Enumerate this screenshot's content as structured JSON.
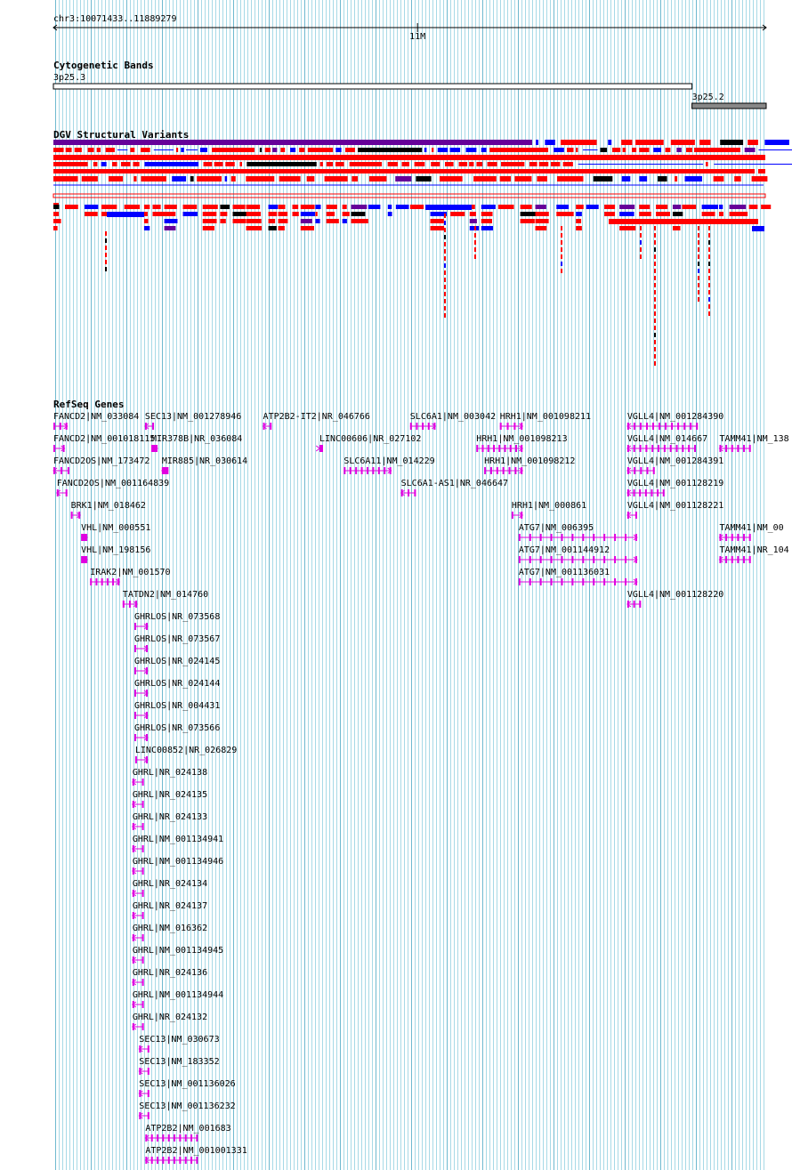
{
  "region": {
    "label": "chr3:10071433..11889279",
    "start": 10071433,
    "end": 11889279,
    "tick_label": "11M",
    "tick_pos": 11000000
  },
  "colors": {
    "grid": "#a7d9e6",
    "grid_major": "#6fb9cf",
    "ruler": "#000000",
    "gene": "#e000e0",
    "gain": "#ff0000",
    "loss": "#0000ff",
    "complex": "#660099",
    "other": "#000000",
    "band_light": "#ffffff",
    "band_dark": "#888888"
  },
  "cytoband": {
    "title": "Cytogenetic Bands",
    "bands": [
      {
        "name": "3p25.3",
        "start": 10071433,
        "end": 11700000,
        "color": "band_light"
      },
      {
        "name": "3p25.2",
        "start": 11700000,
        "end": 11889279,
        "color": "band_dark"
      }
    ]
  },
  "dgv": {
    "title": "DGV Structural Variants"
  },
  "refseq": {
    "title": "RefSeq Genes",
    "genes": [
      {
        "label": "FANCD2|NM_033084",
        "start": 10071433,
        "end": 10107000,
        "strand": "+",
        "row": 0
      },
      {
        "label": "SEC13|NM_001278946",
        "start": 10305000,
        "end": 10328000,
        "strand": "-",
        "row": 0
      },
      {
        "label": "ATP2B2-IT2|NR_046766",
        "start": 10606000,
        "end": 10628000,
        "strand": "-",
        "row": 0
      },
      {
        "label": "SLC6A1|NM_003042",
        "start": 10981000,
        "end": 11046000,
        "strand": "+",
        "row": 0
      },
      {
        "label": "HRH1|NM_001098211",
        "start": 11210000,
        "end": 11268000,
        "strand": "+",
        "row": 0
      },
      {
        "label": "VGLL4|NM_001284390",
        "start": 11535000,
        "end": 11715000,
        "strand": "-",
        "row": 0
      },
      {
        "label": "FANCD2|NM_001018115",
        "start": 10071433,
        "end": 10100000,
        "strand": "+",
        "row": 1
      },
      {
        "label": "MIR378B|NR_036084",
        "start": 10321000,
        "end": 10337000,
        "strand": "+",
        "row": 1
      },
      {
        "label": "LINC00606|NR_027102",
        "start": 10750000,
        "end": 10750500,
        "strand": "+",
        "row": 1
      },
      {
        "label": "HRH1|NM_001098213",
        "start": 11150000,
        "end": 11268000,
        "strand": "+",
        "row": 1
      },
      {
        "label": "VGLL4|NM_014667",
        "start": 11535000,
        "end": 11710000,
        "strand": "-",
        "row": 1
      },
      {
        "label": "TAMM41|NM_138",
        "start": 11770000,
        "end": 11850000,
        "strand": "-",
        "row": 1
      },
      {
        "label": "FANCD2OS|NM_173472",
        "start": 10071433,
        "end": 10112000,
        "strand": "-",
        "row": 2
      },
      {
        "label": "MIR885|NR_030614",
        "start": 10348000,
        "end": 10365000,
        "strand": "-",
        "row": 2
      },
      {
        "label": "SLC6A11|NM_014229",
        "start": 10812000,
        "end": 10933000,
        "strand": "+",
        "row": 2
      },
      {
        "label": "HRH1|NM_001098212",
        "start": 11170000,
        "end": 11268000,
        "strand": "+",
        "row": 2
      },
      {
        "label": "VGLL4|NM_001284391",
        "start": 11535000,
        "end": 11605000,
        "strand": "-",
        "row": 2
      },
      {
        "label": "FANCD2OS|NM_001164839",
        "start": 10080000,
        "end": 10107000,
        "strand": "-",
        "row": 3
      },
      {
        "label": "SLC6A1-AS1|NR_046647",
        "start": 10958000,
        "end": 10996000,
        "strand": "-",
        "row": 3
      },
      {
        "label": "VGLL4|NM_001128219",
        "start": 11535000,
        "end": 11630000,
        "strand": "-",
        "row": 3
      },
      {
        "label": "BRK1|NM_018462",
        "start": 10116000,
        "end": 10140000,
        "strand": "+",
        "row": 4
      },
      {
        "label": "HRH1|NM_000861",
        "start": 11240000,
        "end": 11268000,
        "strand": "+",
        "row": 4
      },
      {
        "label": "VGLL4|NM_001128221",
        "start": 11535000,
        "end": 11560000,
        "strand": "-",
        "row": 4
      },
      {
        "label": "VHL|NM_000551",
        "start": 10142000,
        "end": 10158000,
        "strand": "+",
        "row": 5
      },
      {
        "label": "ATG7|NM_006395",
        "start": 11258000,
        "end": 11560000,
        "strand": "+",
        "row": 5
      },
      {
        "label": "TAMM41|NM_00",
        "start": 11770000,
        "end": 11850000,
        "strand": "-",
        "row": 5
      },
      {
        "label": "VHL|NM_198156",
        "start": 10142000,
        "end": 10158000,
        "strand": "+",
        "row": 6
      },
      {
        "label": "ATG7|NM_001144912",
        "start": 11258000,
        "end": 11560000,
        "strand": "+",
        "row": 6
      },
      {
        "label": "TAMM41|NR_104",
        "start": 11770000,
        "end": 11850000,
        "strand": "-",
        "row": 6
      },
      {
        "label": "IRAK2|NM_001570",
        "start": 10165000,
        "end": 10240000,
        "strand": "+",
        "row": 7
      },
      {
        "label": "ATG7|NM_001136031",
        "start": 11258000,
        "end": 11560000,
        "strand": "+",
        "row": 7
      },
      {
        "label": "TATDN2|NM_014760",
        "start": 10248000,
        "end": 10285000,
        "strand": "+",
        "row": 8
      },
      {
        "label": "VGLL4|NM_001128220",
        "start": 11535000,
        "end": 11570000,
        "strand": "-",
        "row": 8
      },
      {
        "label": "GHRLOS|NR_073568",
        "start": 10278000,
        "end": 10312000,
        "strand": "+",
        "row": 9
      },
      {
        "label": "GHRLOS|NR_073567",
        "start": 10278000,
        "end": 10312000,
        "strand": "+",
        "row": 10
      },
      {
        "label": "GHRLOS|NR_024145",
        "start": 10278000,
        "end": 10312000,
        "strand": "+",
        "row": 11
      },
      {
        "label": "GHRLOS|NR_024144",
        "start": 10278000,
        "end": 10312000,
        "strand": "+",
        "row": 12
      },
      {
        "label": "GHRLOS|NR_004431",
        "start": 10278000,
        "end": 10312000,
        "strand": "+",
        "row": 13
      },
      {
        "label": "GHRLOS|NR_073566",
        "start": 10278000,
        "end": 10312000,
        "strand": "+",
        "row": 14
      },
      {
        "label": "LINC00852|NR_026829",
        "start": 10280000,
        "end": 10312000,
        "strand": "+",
        "row": 15
      },
      {
        "label": "GHRL|NR_024138",
        "start": 10273000,
        "end": 10302000,
        "strand": "-",
        "row": 16
      },
      {
        "label": "GHRL|NR_024135",
        "start": 10273000,
        "end": 10302000,
        "strand": "-",
        "row": 17
      },
      {
        "label": "GHRL|NR_024133",
        "start": 10273000,
        "end": 10302000,
        "strand": "-",
        "row": 18
      },
      {
        "label": "GHRL|NM_001134941",
        "start": 10273000,
        "end": 10302000,
        "strand": "-",
        "row": 19
      },
      {
        "label": "GHRL|NM_001134946",
        "start": 10273000,
        "end": 10302000,
        "strand": "-",
        "row": 20
      },
      {
        "label": "GHRL|NR_024134",
        "start": 10273000,
        "end": 10302000,
        "strand": "-",
        "row": 21
      },
      {
        "label": "GHRL|NR_024137",
        "start": 10273000,
        "end": 10302000,
        "strand": "-",
        "row": 22
      },
      {
        "label": "GHRL|NM_016362",
        "start": 10273000,
        "end": 10302000,
        "strand": "-",
        "row": 23
      },
      {
        "label": "GHRL|NM_001134945",
        "start": 10273000,
        "end": 10302000,
        "strand": "-",
        "row": 24
      },
      {
        "label": "GHRL|NR_024136",
        "start": 10273000,
        "end": 10302000,
        "strand": "-",
        "row": 25
      },
      {
        "label": "GHRL|NM_001134944",
        "start": 10273000,
        "end": 10302000,
        "strand": "-",
        "row": 26
      },
      {
        "label": "GHRL|NR_024132",
        "start": 10273000,
        "end": 10302000,
        "strand": "-",
        "row": 27
      },
      {
        "label": "SEC13|NM_030673",
        "start": 10290000,
        "end": 10316000,
        "strand": "-",
        "row": 28
      },
      {
        "label": "SEC13|NM_183352",
        "start": 10290000,
        "end": 10316000,
        "strand": "-",
        "row": 29
      },
      {
        "label": "SEC13|NM_001136026",
        "start": 10290000,
        "end": 10316000,
        "strand": "-",
        "row": 30
      },
      {
        "label": "SEC13|NM_001136232",
        "start": 10290000,
        "end": 10316000,
        "strand": "-",
        "row": 31
      },
      {
        "label": "ATP2B2|NM_001683",
        "start": 10306000,
        "end": 10440000,
        "strand": "-",
        "row": 32
      },
      {
        "label": "ATP2B2|NM_001001331",
        "start": 10306000,
        "end": 10440000,
        "strand": "-",
        "row": 33
      }
    ]
  }
}
